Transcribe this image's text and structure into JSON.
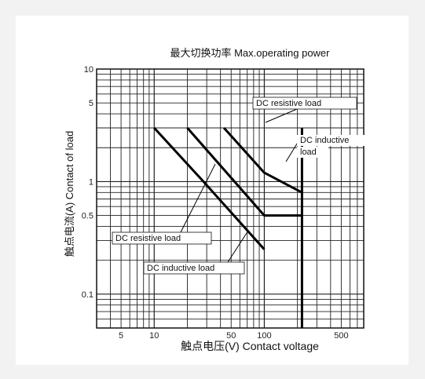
{
  "chart_data": {
    "type": "line",
    "title": "最大切换功率 Max.operating power",
    "xlabel": "触点电压(V) Contact voltage",
    "ylabel": "触点电流(A) Contact of load",
    "xscale": "log",
    "yscale": "log",
    "xlim": [
      3,
      800
    ],
    "ylim": [
      0.05,
      10
    ],
    "grid": true,
    "x_ticks": [
      {
        "value": 5,
        "label": "5"
      },
      {
        "value": 10,
        "label": "10"
      },
      {
        "value": 50,
        "label": "50"
      },
      {
        "value": 100,
        "label": "100"
      },
      {
        "value": 500,
        "label": "500"
      }
    ],
    "y_ticks": [
      {
        "value": 10,
        "label": "10"
      },
      {
        "value": 5,
        "label": "5"
      },
      {
        "value": 1,
        "label": "1"
      },
      {
        "value": 0.5,
        "label": "0.5"
      },
      {
        "value": 0.1,
        "label": "0.1"
      }
    ],
    "series": [
      {
        "x": [
          10,
          28,
          100
        ],
        "y": [
          3,
          1,
          0.25
        ]
      },
      {
        "x": [
          20,
          100,
          220
        ],
        "y": [
          3,
          0.5,
          0.5
        ]
      },
      {
        "x": [
          43,
          100,
          220
        ],
        "y": [
          3,
          1.2,
          0.8
        ]
      },
      {
        "x": [
          220,
          220
        ],
        "y": [
          3,
          0.05
        ]
      }
    ],
    "annotations": [
      {
        "text": "DC resistive load",
        "box": true
      },
      {
        "text": "DC inductive",
        "box": false
      },
      {
        "text": "load",
        "box": false
      },
      {
        "text": "DC resistive load",
        "box": true
      },
      {
        "text": "DC inductive load",
        "box": true
      }
    ]
  }
}
